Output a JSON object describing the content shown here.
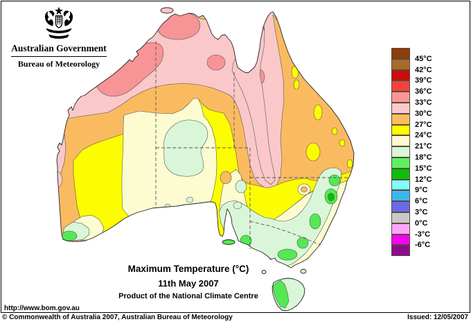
{
  "header": {
    "government": "Australian Government",
    "bureau": "Bureau of Meteorology"
  },
  "captions": {
    "title": "Maximum Temperature (°C)",
    "date": "11th May 2007",
    "product": "Product of the National Climate Centre"
  },
  "footer": {
    "url": "http://www.bom.gov.au",
    "copyright": "© Commonwealth of Australia 2007, Australian Bureau of Meteorology",
    "issued": "Issued: 12/05/2007"
  },
  "legend": {
    "labels": [
      "45°C",
      "42°C",
      "39°C",
      "36°C",
      "33°C",
      "30°C",
      "27°C",
      "24°C",
      "21°C",
      "18°C",
      "15°C",
      "12°C",
      "9°C",
      "6°C",
      "3°C",
      "0°C",
      "-3°C",
      "-6°C"
    ],
    "colors": [
      "#8B3E0E",
      "#A76A2B",
      "#C90C0C",
      "#F94040",
      "#F89597",
      "#FBC9CA",
      "#FBBC61",
      "#FDFD00",
      "#FCFCD0",
      "#D9F6D9",
      "#5EF05E",
      "#0DBE0D",
      "#82FDFD",
      "#3AB6EF",
      "#6A6AE9",
      "#C9C9C9",
      "#FDA6FD",
      "#F303F3",
      "#8D0C8D"
    ]
  },
  "map": {
    "sea": "#FFFFFF",
    "colors": {
      "t33_36": "#F79496",
      "t30_33": "#FAC8C9",
      "t27_30": "#FABB60",
      "t24_27": "#FDFD02",
      "t21_24": "#FCFCD0",
      "t18_21": "#D9F6D9",
      "t15_18": "#54E854",
      "t12_15": "#0CBE0C"
    }
  }
}
